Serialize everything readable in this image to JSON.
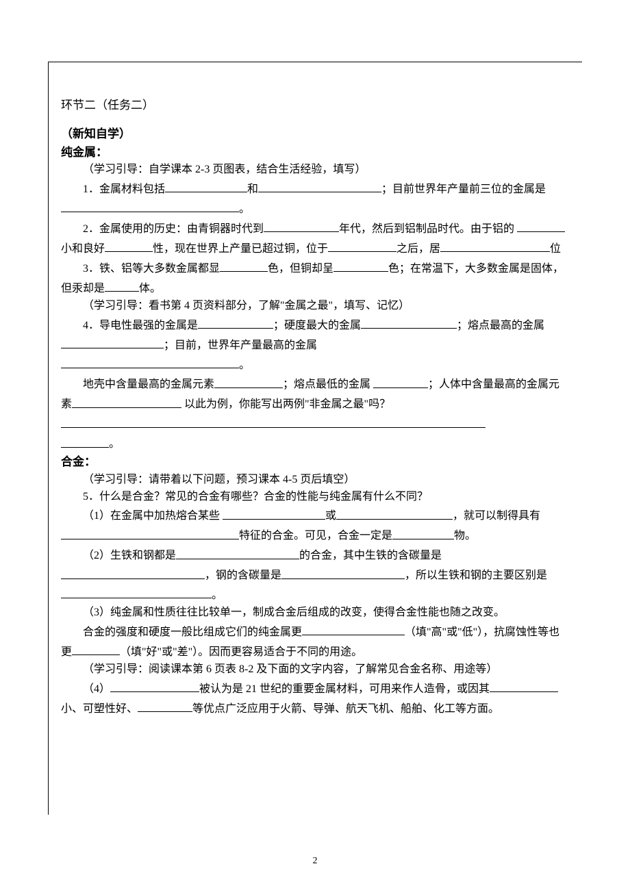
{
  "page": {
    "number": "2"
  },
  "section2": {
    "title": "环节二（任务二）",
    "heading": "（新知自学）",
    "pure_metal": {
      "label": "纯金属：",
      "guide1": "（学习引导：自学课本 2-3 页图表，结合生活经验，填写）",
      "q1_a": "1．金属材料包括",
      "q1_b": "和",
      "q1_c": "；目前世界年产量前三位的金属是",
      "q1_d": "。",
      "q2_a": "2．金属使用的历史：由青铜器时代到",
      "q2_b": "年代，然后到铝制品时代。由于铝的 ",
      "q2_c": "小和良好",
      "q2_d": "性，现在世界上产量已超过铜，位于",
      "q2_e": "之后，居",
      "q2_f": "位",
      "q3_a": "3．铁、铝等大多数金属都显",
      "q3_b": "色，但铜却呈",
      "q3_c": "色；在常温下，大多数金属是固体，但汞却是",
      "q3_d": "体。",
      "guide2": "（学习引导：看书第 4 页资料部分，了解\"金属之最\"，填写、记忆）",
      "q4_a": "4．导电性最强的金属是",
      "q4_b": "；硬度最大的金属",
      "q4_c": "；熔点最高的金属",
      "q4_d": "；目前，世界年产量最高的金属",
      "q4_e": "。",
      "q4_f": "地壳中含量最高的金属元素",
      "q4_g": "；熔点最低的金属 ",
      "q4_h": "；人体中含量最高的金属元素",
      "q4_i": " 以此为例，你能写出两例\"非金属之最\"吗？",
      "q4_j": "。"
    },
    "alloy": {
      "label": "合金：",
      "guide1": "（学习引导：请带着以下问题，预习课本 4-5 页后填空）",
      "q5": "5．什么是合金？常见的合金有哪些？合金的性能与纯金属有什么不同？",
      "q5_1_a": "（1）在金属中加热熔合某些 ",
      "q5_1_b": "或",
      "q5_1_c": "，就可以制得具有",
      "q5_1_d": "特征的合金。可见，合金一定是",
      "q5_1_e": "物。",
      "q5_2_a": "（2）生铁和钢都是",
      "q5_2_b": "的合金，其中生铁的含碳量是",
      "q5_2_c": "，钢的含碳量是",
      "q5_2_d": "，所以生铁和钢的主要区别是",
      "q5_2_e": "。",
      "q5_3": "（3）纯金属和性质往往比较单一，制成合金后组成的改变，使得合金性能也随之改变。",
      "q5_3b_a": "合金的强度和硬度一般比组成它们的纯金属更",
      "q5_3b_b": "（填\"高\"或\"低\"），抗腐蚀性等也更",
      "q5_3b_c": "（填\"好\"或\"差\"）。因而更容易适合于不同的用途。",
      "guide2": "（学习引导：阅读课本第 6 页表 8-2 及下面的文字内容，了解常见合金名称、用途等）",
      "q5_4_a": "（4）",
      "q5_4_b": "被认为是 21 世纪的重要金属材料，可用来作人造骨，或因其",
      "q5_4_c": "小、可塑性好、",
      "q5_4_d": "等优点广泛应用于火箭、导弹、航天飞机、船舶、化工等方面。"
    }
  }
}
